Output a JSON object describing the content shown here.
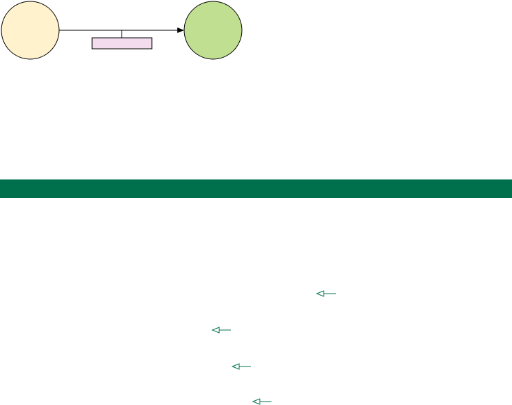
{
  "diagram": {
    "source_node": {
      "label": "",
      "fill": "#fff2cc"
    },
    "target_node": {
      "label": "",
      "fill": "#c1df91"
    },
    "edge": {
      "label": "",
      "label_fill": "#f2dcee"
    }
  },
  "banner": {
    "text": "",
    "color": "#006f4b"
  },
  "pointers": {
    "color": "#006f4b",
    "icon": "left-arrow-icon",
    "items": [
      {
        "text": ""
      },
      {
        "text": ""
      },
      {
        "text": ""
      },
      {
        "text": ""
      }
    ]
  }
}
